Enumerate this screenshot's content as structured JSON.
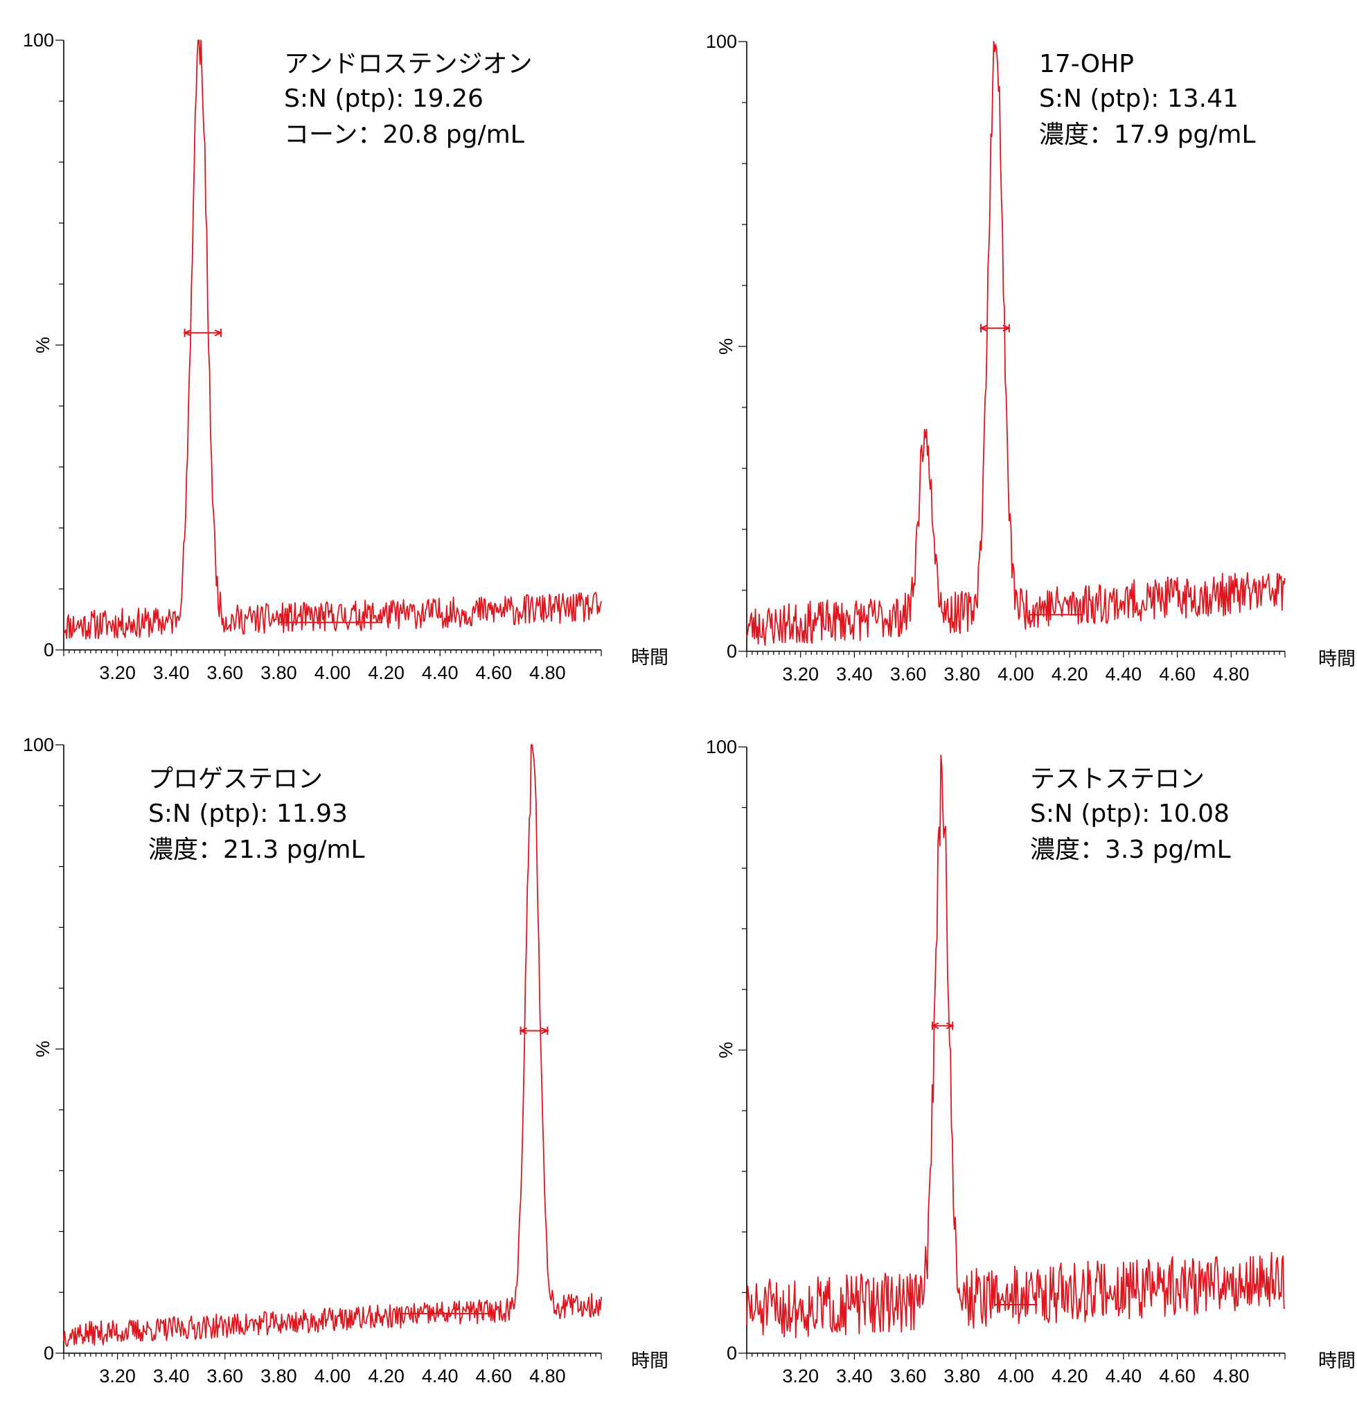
{
  "colors": {
    "trace": "#e0161f",
    "axis": "#000000",
    "background": "#ffffff"
  },
  "chart_data": [
    {
      "type": "line",
      "title": "アンドロステンジオン",
      "annotations": [
        "S:N (ptp): 19.26",
        "コーン：20.8 pg/mL"
      ],
      "xlabel": "時間",
      "ylabel": "%",
      "xlim": [
        3.0,
        5.0
      ],
      "ylim": [
        0,
        100
      ],
      "xticks": [
        "3.20",
        "3.40",
        "3.60",
        "3.80",
        "4.00",
        "4.20",
        "4.40",
        "4.60",
        "4.80"
      ],
      "yticks": [
        "0",
        "%",
        "100"
      ],
      "baseline": 4,
      "noise": 2.5,
      "noise_seed": 11,
      "drift_end": 7,
      "peaks": [
        {
          "x": 3.505,
          "height": 96,
          "width": 0.028
        }
      ],
      "width_marker": {
        "x1": 3.45,
        "x2": 3.585,
        "y": 52
      },
      "baseline_marker": {
        "x1": 3.8,
        "x2": 4.18,
        "y": 4.5
      },
      "x_values": [
        3.0,
        3.2,
        3.4,
        3.45,
        3.48,
        3.505,
        3.53,
        3.56,
        3.6,
        3.8,
        4.0,
        4.2,
        4.4,
        4.6,
        4.8,
        5.0
      ],
      "y_values": [
        4,
        4,
        4,
        6,
        75,
        100,
        80,
        12,
        7,
        5,
        5,
        5,
        5.5,
        6,
        7,
        7
      ]
    },
    {
      "type": "line",
      "title": "17-OHP",
      "annotations": [
        "S:N (ptp): 13.41",
        "濃度：17.9 pg/mL"
      ],
      "xlabel": "時間",
      "ylabel": "%",
      "xlim": [
        3.0,
        5.0
      ],
      "ylim": [
        0,
        100
      ],
      "xticks": [
        "3.20",
        "3.40",
        "3.60",
        "3.80",
        "4.00",
        "4.20",
        "4.40",
        "4.60",
        "4.80"
      ],
      "yticks": [
        "0",
        "%",
        "100"
      ],
      "baseline": 4,
      "noise": 3.5,
      "noise_seed": 23,
      "drift_end": 10,
      "peaks": [
        {
          "x": 3.665,
          "height": 30,
          "width": 0.025
        },
        {
          "x": 3.925,
          "height": 94,
          "width": 0.027
        }
      ],
      "width_marker": {
        "x1": 3.87,
        "x2": 3.975,
        "y": 53
      },
      "baseline_marker": {
        "x1": 4.05,
        "x2": 4.25,
        "y": 6
      },
      "x_values": [
        3.0,
        3.2,
        3.4,
        3.6,
        3.665,
        3.73,
        3.8,
        3.88,
        3.925,
        3.97,
        4.05,
        4.2,
        4.4,
        4.6,
        4.8,
        5.0
      ],
      "y_values": [
        4,
        4,
        5,
        8,
        36,
        8,
        7,
        10,
        100,
        12,
        8,
        6,
        6,
        7,
        9,
        10
      ]
    },
    {
      "type": "line",
      "title": "プロゲステロン",
      "annotations": [
        "S:N (ptp): 11.93",
        "濃度：21.3 pg/mL"
      ],
      "xlabel": "時間",
      "ylabel": "%",
      "xlim": [
        3.0,
        5.0
      ],
      "ylim": [
        0,
        100
      ],
      "xticks": [
        "3.20",
        "3.40",
        "3.60",
        "3.80",
        "4.00",
        "4.20",
        "4.40",
        "4.60",
        "4.80"
      ],
      "yticks": [
        "0",
        "%",
        "100"
      ],
      "baseline": 3,
      "noise": 2.0,
      "noise_seed": 37,
      "drift_end": 8,
      "peaks": [
        {
          "x": 4.745,
          "height": 92,
          "width": 0.025
        }
      ],
      "width_marker": {
        "x1": 4.7,
        "x2": 4.8,
        "y": 53
      },
      "baseline_marker": {
        "x1": 4.25,
        "x2": 4.6,
        "y": 6.5
      },
      "x_values": [
        3.0,
        3.2,
        3.4,
        3.6,
        3.8,
        4.0,
        4.2,
        4.4,
        4.55,
        4.7,
        4.745,
        4.78,
        4.85,
        5.0
      ],
      "y_values": [
        3,
        3,
        3.5,
        4,
        5,
        5.5,
        6.5,
        7,
        9,
        8,
        100,
        30,
        10,
        6
      ]
    },
    {
      "type": "line",
      "title": "テストステロン",
      "annotations": [
        "S:N (ptp): 10.08",
        "濃度：3.3 pg/mL"
      ],
      "xlabel": "時間",
      "ylabel": "%",
      "xlim": [
        3.0,
        5.0
      ],
      "ylim": [
        0,
        100
      ],
      "xticks": [
        "3.20",
        "3.40",
        "3.60",
        "3.80",
        "4.00",
        "4.20",
        "4.40",
        "4.60",
        "4.80"
      ],
      "yticks": [
        "0",
        "%",
        "100"
      ],
      "baseline": 7,
      "noise": 5.0,
      "noise_seed": 51,
      "drift_end": 12,
      "peaks": [
        {
          "x": 3.725,
          "height": 85,
          "width": 0.025
        }
      ],
      "width_marker": {
        "x1": 3.69,
        "x2": 3.765,
        "y": 54
      },
      "baseline_marker": {
        "x1": 3.92,
        "x2": 4.08,
        "y": 8
      },
      "x_values": [
        3.0,
        3.2,
        3.4,
        3.6,
        3.68,
        3.725,
        3.76,
        3.82,
        4.0,
        4.2,
        4.4,
        4.6,
        4.8,
        5.0
      ],
      "y_values": [
        7,
        7,
        8,
        9,
        12,
        100,
        40,
        8,
        9,
        10,
        10,
        11,
        12,
        13
      ]
    }
  ]
}
